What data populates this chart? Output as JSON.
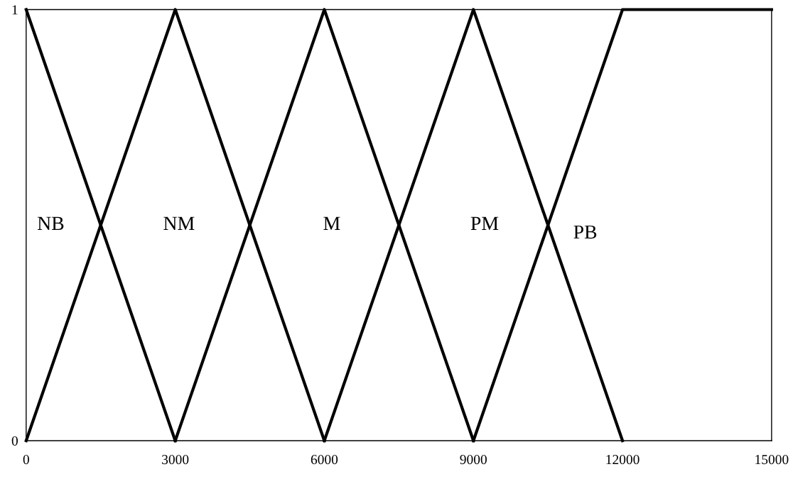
{
  "chart_data": {
    "type": "line",
    "xlim": [
      0,
      15000
    ],
    "ylim": [
      0,
      1
    ],
    "xticks": [
      0,
      3000,
      6000,
      9000,
      12000,
      15000
    ],
    "yticks": [
      0,
      1
    ],
    "grid": false,
    "legend": false,
    "marker": "none",
    "line_style": "solid",
    "series": [
      {
        "name": "NB",
        "color": "#000000",
        "x": [
          0,
          3000
        ],
        "values": [
          1,
          0
        ]
      },
      {
        "name": "NM",
        "color": "#000000",
        "x": [
          0,
          3000,
          6000
        ],
        "values": [
          0,
          1,
          0
        ]
      },
      {
        "name": "M",
        "color": "#000000",
        "x": [
          3000,
          6000,
          9000
        ],
        "values": [
          0,
          1,
          0
        ]
      },
      {
        "name": "PM",
        "color": "#000000",
        "x": [
          6000,
          9000,
          12000
        ],
        "values": [
          0,
          1,
          0
        ]
      },
      {
        "name": "PB",
        "color": "#000000",
        "x": [
          9000,
          12000,
          15000
        ],
        "values": [
          0,
          1,
          1
        ]
      }
    ]
  }
}
